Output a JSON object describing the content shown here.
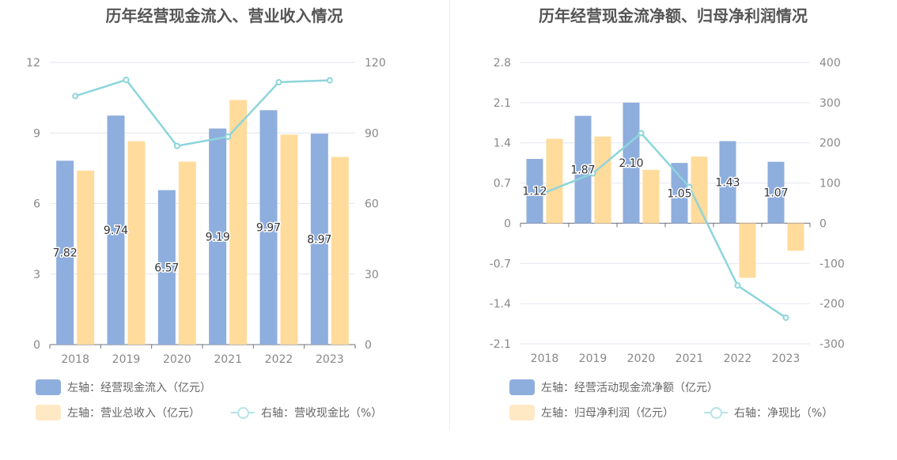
{
  "colors": {
    "bar_primary": "#8eaedd",
    "bar_secondary": "#ffdb9c",
    "line": "#8dd5db",
    "legend_bar_secondary": "#ffe8c4",
    "legend_line": "#b5e4e8"
  },
  "chart_data": [
    {
      "type": "bar",
      "title": "历年经营现金流入、营业收入情况",
      "categories": [
        "2018",
        "2019",
        "2020",
        "2021",
        "2022",
        "2023"
      ],
      "y_left": {
        "min": 0,
        "max": 12,
        "ticks": [
          "0",
          "3",
          "6",
          "9",
          "12"
        ]
      },
      "y_right": {
        "min": 0,
        "max": 120,
        "ticks": [
          "0",
          "30",
          "60",
          "90",
          "120"
        ]
      },
      "series": [
        {
          "name": "左轴：经营现金流入（亿元）",
          "kind": "bar",
          "axis": "left",
          "values": [
            7.82,
            9.74,
            6.57,
            9.19,
            9.97,
            8.97
          ],
          "labels": [
            "7.82",
            "9.74",
            "6.57",
            "9.19",
            "9.97",
            "8.97"
          ]
        },
        {
          "name": "左轴：营业总收入（亿元）",
          "kind": "bar",
          "axis": "left",
          "values": [
            7.4,
            8.65,
            7.78,
            10.4,
            8.93,
            7.98
          ]
        },
        {
          "name": "右轴：营收现金比（%）",
          "kind": "line",
          "axis": "right",
          "values": [
            105.7,
            112.6,
            84.5,
            88.4,
            111.6,
            112.4
          ]
        }
      ]
    },
    {
      "type": "bar",
      "title": "历年经营现金流净额、归母净利润情况",
      "categories": [
        "2018",
        "2019",
        "2020",
        "2021",
        "2022",
        "2023"
      ],
      "y_left": {
        "min": -2.1,
        "max": 2.8,
        "ticks": [
          "-2.1",
          "-1.4",
          "-0.7",
          "0",
          "0.7",
          "1.4",
          "2.1",
          "2.8"
        ]
      },
      "y_right": {
        "min": -300,
        "max": 400,
        "ticks": [
          "-300",
          "-200",
          "-100",
          "0",
          "100",
          "200",
          "300",
          "400"
        ]
      },
      "series": [
        {
          "name": "左轴：经营活动现金流净额（亿元）",
          "kind": "bar",
          "axis": "left",
          "values": [
            1.12,
            1.87,
            2.1,
            1.05,
            1.43,
            1.07
          ],
          "labels": [
            "1.12",
            "1.87",
            "2.10",
            "1.05",
            "1.43",
            "1.07"
          ]
        },
        {
          "name": "左轴：归母净利润（亿元）",
          "kind": "bar",
          "axis": "left",
          "values": [
            1.47,
            1.51,
            0.93,
            1.16,
            -0.95,
            -0.48
          ]
        },
        {
          "name": "右轴：净现比（%）",
          "kind": "line",
          "axis": "right",
          "values": [
            76,
            124,
            224,
            90,
            -155,
            -235
          ]
        }
      ]
    }
  ]
}
